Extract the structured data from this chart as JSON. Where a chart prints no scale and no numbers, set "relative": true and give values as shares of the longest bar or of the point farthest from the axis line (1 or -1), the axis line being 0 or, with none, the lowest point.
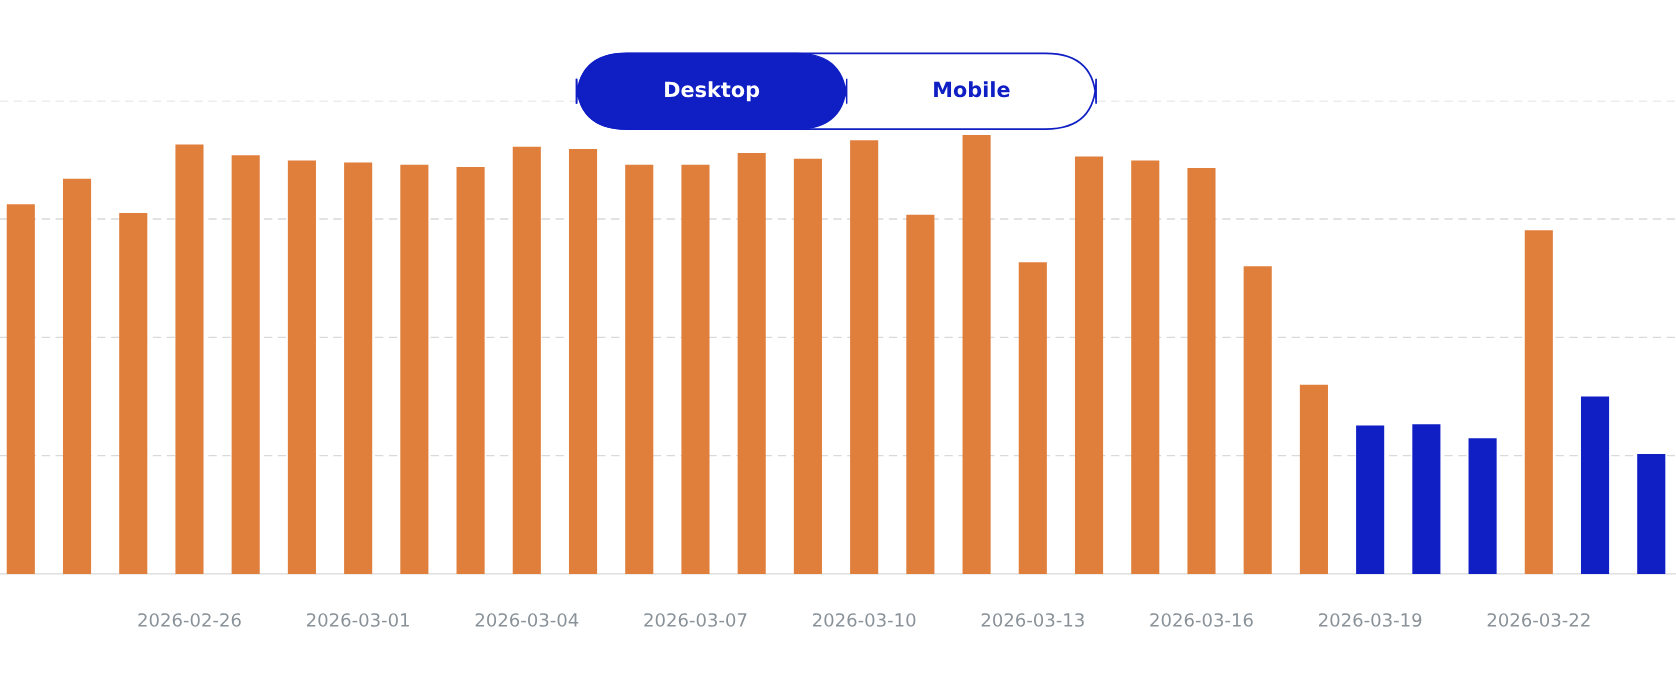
{
  "chart_data": {
    "type": "bar",
    "relative": true,
    "annotations": [
      "Desktop",
      "Mobile"
    ],
    "categories": [
      null,
      null,
      null,
      "2026-02-26",
      null,
      null,
      "2026-03-01",
      null,
      null,
      "2026-03-04",
      null,
      null,
      "2026-03-07",
      null,
      null,
      "2026-03-10",
      null,
      null,
      "2026-03-13",
      null,
      null,
      "2026-03-16",
      null,
      null,
      "2026-03-19",
      null,
      null,
      "2026-03-22",
      null,
      null
    ],
    "values": [
      0.842,
      0.9,
      0.822,
      0.978,
      0.954,
      0.942,
      0.937,
      0.932,
      0.927,
      0.973,
      0.968,
      0.932,
      0.932,
      0.959,
      0.946,
      0.988,
      0.818,
      1.0,
      0.71,
      0.951,
      0.942,
      0.925,
      0.701,
      0.431,
      0.338,
      0.341,
      0.309,
      0.783,
      0.404,
      0.273
    ],
    "colors": [
      "#e07f3c",
      "#e07f3c",
      "#e07f3c",
      "#e07f3c",
      "#e07f3c",
      "#e07f3c",
      "#e07f3c",
      "#e07f3c",
      "#e07f3c",
      "#e07f3c",
      "#e07f3c",
      "#e07f3c",
      "#e07f3c",
      "#e07f3c",
      "#e07f3c",
      "#e07f3c",
      "#e07f3c",
      "#e07f3c",
      "#e07f3c",
      "#e07f3c",
      "#e07f3c",
      "#e07f3c",
      "#e07f3c",
      "#e07f3c",
      "#0f1fc4",
      "#0f1fc4",
      "#0f1fc4",
      "#e07f3c",
      "#0f1fc4",
      "#0f1fc4"
    ],
    "grid": "y",
    "tick_labels": "x"
  }
}
